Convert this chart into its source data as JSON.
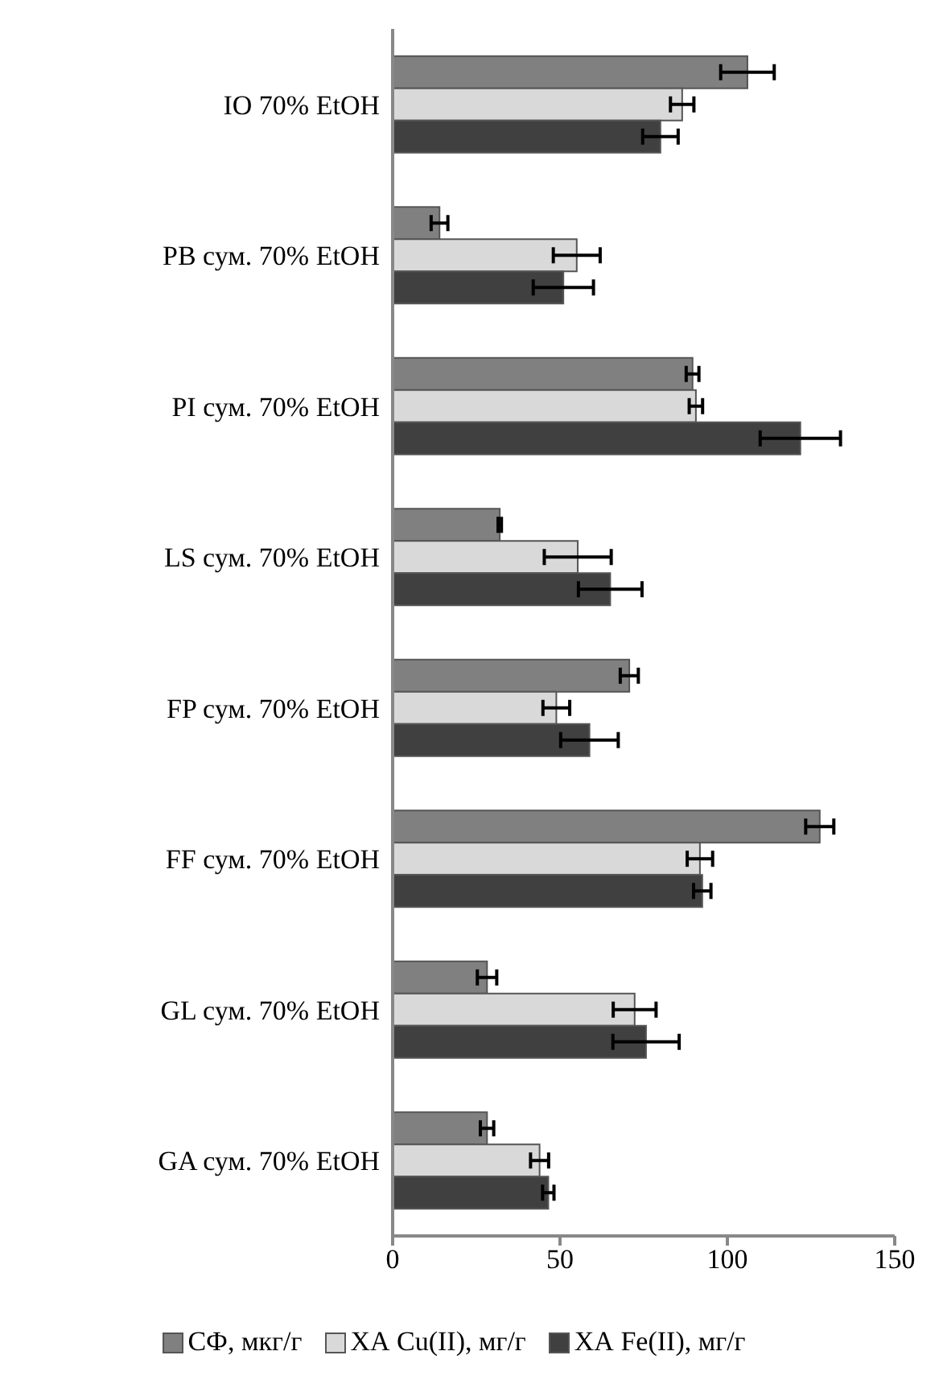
{
  "chart_data": {
    "type": "bar",
    "orientation": "horizontal",
    "categories": [
      "IO 70% EtOH",
      "PB сум. 70% EtOH",
      "PI сум. 70% EtOH",
      "LS сум. 70% EtOH",
      "FP сум. 70% EtOH",
      "FF сум. 70% EtOH",
      "GL сум. 70% EtOH",
      "GA сум. 70% EtOH"
    ],
    "series": [
      {
        "name": "СФ, мкг/г",
        "color": "#808080",
        "values": [
          106,
          14,
          89.6,
          32,
          70.7,
          127.6,
          28.2,
          28.2
        ],
        "errors": [
          8,
          2.5,
          1.9,
          0.5,
          2.7,
          4.2,
          2.9,
          2
        ]
      },
      {
        "name": "ХА Cu(II), мг/г",
        "color": "#d9d9d9",
        "values": [
          86.5,
          55,
          90.6,
          55.3,
          48.9,
          91.8,
          72.3,
          43.9
        ],
        "errors": [
          3.5,
          7,
          2,
          10,
          4,
          3.8,
          6.4,
          2.7
        ]
      },
      {
        "name": "ХА Fe(II), мг/г",
        "color": "#404040",
        "values": [
          80,
          51,
          121.8,
          65,
          58.8,
          92.5,
          75.7,
          46.5
        ],
        "errors": [
          5.3,
          9,
          12,
          9.5,
          8.6,
          2.6,
          9.9,
          1.7
        ]
      }
    ],
    "xlim": [
      0,
      150
    ],
    "xticks": [
      0,
      50,
      100,
      150
    ],
    "grid": false,
    "legend": "bottom"
  }
}
